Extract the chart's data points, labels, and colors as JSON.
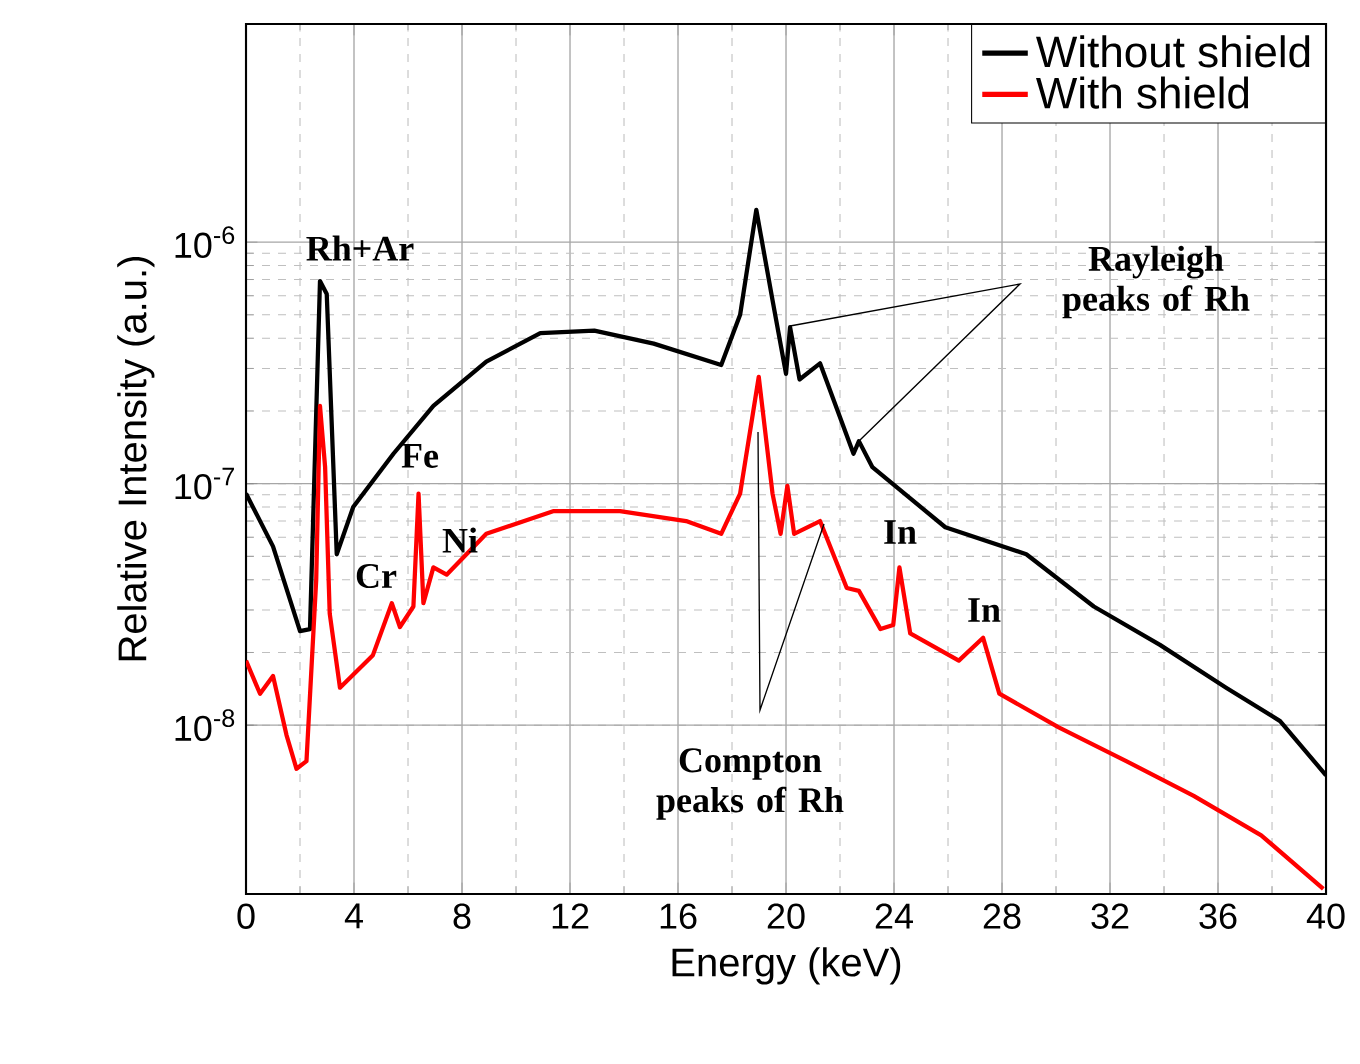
{
  "chart_data": {
    "type": "line",
    "xlabel": "Energy (keV)",
    "ylabel": "Relative Intensity (a.u.)",
    "log": "y",
    "grid": true,
    "legend": "top right",
    "line_style": "solid",
    "marker": "none",
    "xlim": [
      0,
      40
    ],
    "xticks": [
      0,
      4,
      8,
      12,
      16,
      20,
      24,
      28,
      32,
      36,
      40
    ],
    "ylim": [
      2e-09,
      8e-06
    ],
    "yticks": [
      {
        "value": 1e-08,
        "label": "10$^{-8}$"
      },
      {
        "value": 1e-07,
        "label": "10$^{-7}$"
      },
      {
        "value": 1e-06,
        "label": "10$^{-6}$"
      }
    ],
    "series": [
      {
        "name": "Without shield",
        "color": "#000000",
        "x": [
          0,
          1.0,
          2.0,
          2.37,
          2.74,
          2.99,
          3.36,
          3.97,
          5.46,
          6.94,
          8.9,
          10.9,
          12.9,
          15.1,
          17.6,
          18.3,
          18.9,
          19.5,
          20.0,
          20.15,
          20.5,
          21.26,
          22.5,
          22.7,
          23.2,
          25.9,
          28.9,
          31.4,
          33.85,
          36.3,
          38.3,
          40
        ],
        "values": [
          9.1e-08,
          5.5e-08,
          2.45e-08,
          2.5e-08,
          6.9e-07,
          6.1e-07,
          5.1e-08,
          8e-08,
          1.33e-07,
          2.1e-07,
          3.2e-07,
          4.2e-07,
          4.3e-07,
          3.8e-07,
          3.1e-07,
          5e-07,
          1.36e-06,
          5.75e-07,
          2.85e-07,
          4.45e-07,
          2.7e-07,
          3.15e-07,
          1.33e-07,
          1.5e-07,
          1.17e-07,
          6.6e-08,
          5.1e-08,
          3.1e-08,
          2.15e-08,
          1.43e-08,
          1.04e-08,
          6.2e-09
        ]
      },
      {
        "name": "With shield",
        "color": "#ff0000",
        "x": [
          0,
          0.52,
          1.0,
          1.5,
          1.87,
          2.24,
          2.6,
          2.74,
          2.93,
          3.1,
          3.48,
          4.7,
          5.4,
          5.7,
          6.2,
          6.39,
          6.57,
          6.94,
          7.43,
          8.9,
          11.4,
          13.85,
          16.3,
          17.6,
          18.3,
          18.99,
          19.5,
          19.8,
          20.05,
          20.3,
          21.26,
          22.25,
          22.7,
          23.5,
          23.97,
          24.2,
          24.6,
          26.4,
          27.3,
          27.9,
          30.1,
          32.6,
          35.1,
          37.6,
          39.9
        ],
        "values": [
          1.85e-08,
          1.35e-08,
          1.6e-08,
          9.1e-09,
          6.6e-09,
          7.1e-09,
          4e-08,
          2.1e-07,
          1.17e-07,
          2.9e-08,
          1.43e-08,
          1.95e-08,
          3.2e-08,
          2.55e-08,
          3.1e-08,
          9.1e-08,
          3.2e-08,
          4.5e-08,
          4.2e-08,
          6.2e-08,
          7.7e-08,
          7.7e-08,
          7e-08,
          6.2e-08,
          9.1e-08,
          2.77e-07,
          9.1e-08,
          6.2e-08,
          9.8e-08,
          6.2e-08,
          7e-08,
          3.7e-08,
          3.6e-08,
          2.5e-08,
          2.6e-08,
          4.5e-08,
          2.4e-08,
          1.85e-08,
          2.3e-08,
          1.35e-08,
          9.8e-09,
          7.1e-09,
          5.1e-09,
          3.5e-09,
          2.1e-09
        ]
      }
    ],
    "annotations": [
      "Rh+Ar",
      "Fe",
      "Cr",
      "Ni",
      "In",
      "In",
      "Rayleigh peaks of Rh",
      "Compton peaks of Rh"
    ]
  }
}
